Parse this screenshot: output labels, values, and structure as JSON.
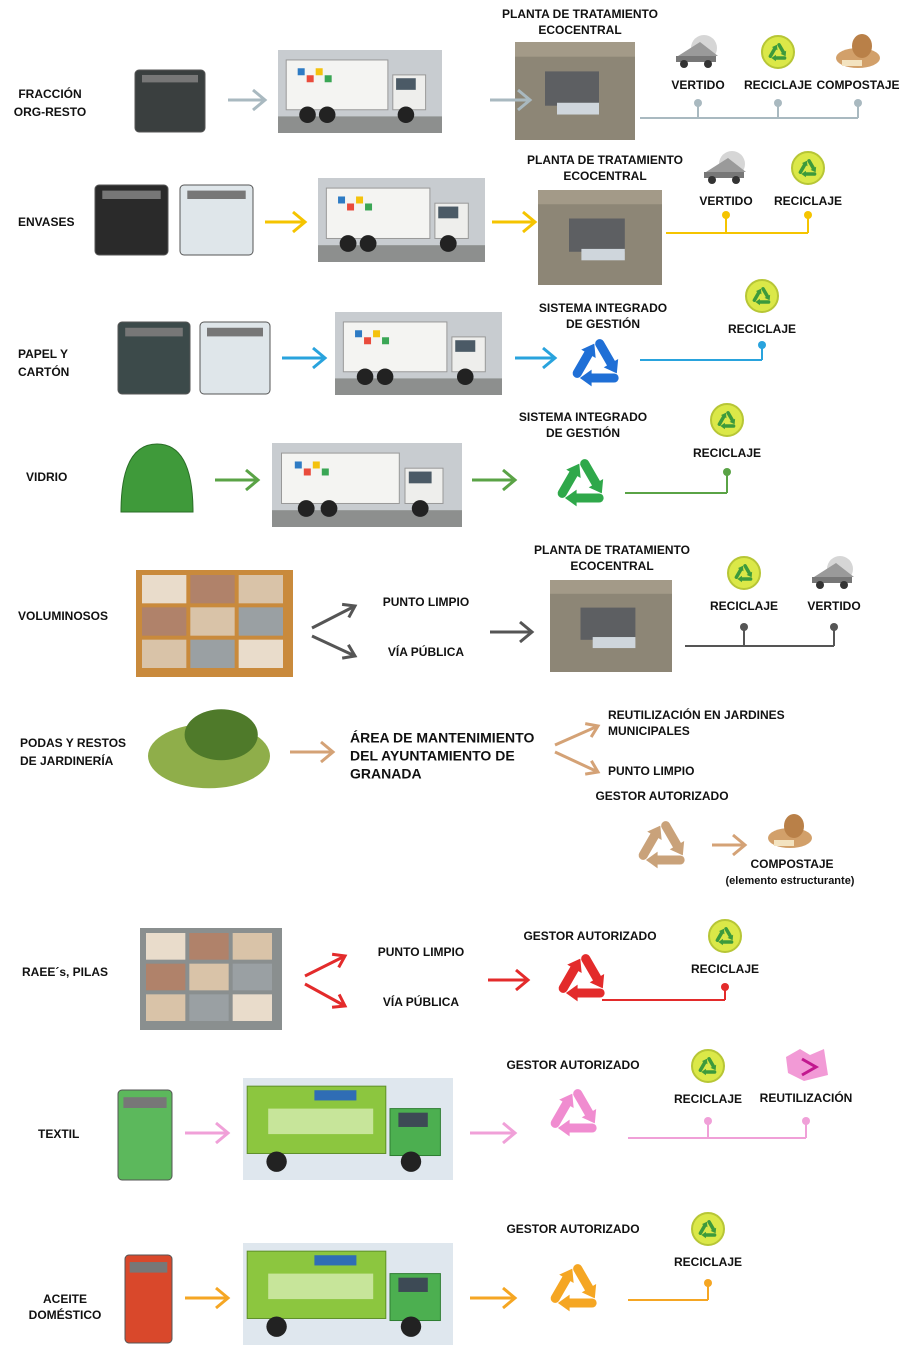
{
  "flows": [
    {
      "source": [
        "FRACCIÓN",
        "ORG-RESTO"
      ],
      "facility": [
        "PLANTA DE TRATAMIENTO",
        "ECOCENTRAL"
      ],
      "outputs": [
        "VERTIDO",
        "RECICLAJE",
        "COMPOSTAJE"
      ]
    },
    {
      "source": [
        "ENVASES"
      ],
      "facility": [
        "PLANTA DE TRATAMIENTO",
        "ECOCENTRAL"
      ],
      "outputs": [
        "VERTIDO",
        "RECICLAJE"
      ]
    },
    {
      "source": [
        "PAPEL Y",
        "CARTÓN"
      ],
      "facility": [
        "SISTEMA INTEGRADO",
        "DE GESTIÓN"
      ],
      "outputs": [
        "RECICLAJE"
      ]
    },
    {
      "source": [
        "VIDRIO"
      ],
      "facility": [
        "SISTEMA INTEGRADO",
        "DE GESTIÓN"
      ],
      "outputs": [
        "RECICLAJE"
      ]
    },
    {
      "source": [
        "VOLUMINOSOS"
      ],
      "collection": [
        "PUNTO LIMPIO",
        "VÍA PÚBLICA"
      ],
      "facility": [
        "PLANTA DE TRATAMIENTO",
        "ECOCENTRAL"
      ],
      "outputs": [
        "RECICLAJE",
        "VERTIDO"
      ]
    },
    {
      "source": [
        "PODAS Y RESTOS",
        "DE JARDINERÍA"
      ],
      "facility": [
        "ÁREA DE MANTENIMIENTO",
        "DEL AYUNTAMIENTO DE",
        "GRANADA"
      ],
      "destinations": [
        [
          "REUTILIZACIÓN EN JARDINES",
          "MUNICIPALES"
        ],
        [
          "PUNTO LIMPIO"
        ]
      ],
      "manager": "GESTOR AUTORIZADO",
      "outputs": [
        "COMPOSTAJE"
      ],
      "output_note": "(elemento estructurante)"
    },
    {
      "source": [
        "RAEE´s, PILAS"
      ],
      "collection": [
        "PUNTO LIMPIO",
        "VÍA PÚBLICA"
      ],
      "facility": [
        "GESTOR AUTORIZADO"
      ],
      "outputs": [
        "RECICLAJE"
      ]
    },
    {
      "source": [
        "TEXTIL"
      ],
      "facility": [
        "GESTOR AUTORIZADO"
      ],
      "outputs": [
        "RECICLAJE",
        "REUTILIZACIÓN"
      ]
    },
    {
      "source": [
        "ACEITE",
        "DOMÉSTICO"
      ],
      "facility": [
        "GESTOR AUTORIZADO"
      ],
      "outputs": [
        "RECICLAJE"
      ]
    }
  ]
}
